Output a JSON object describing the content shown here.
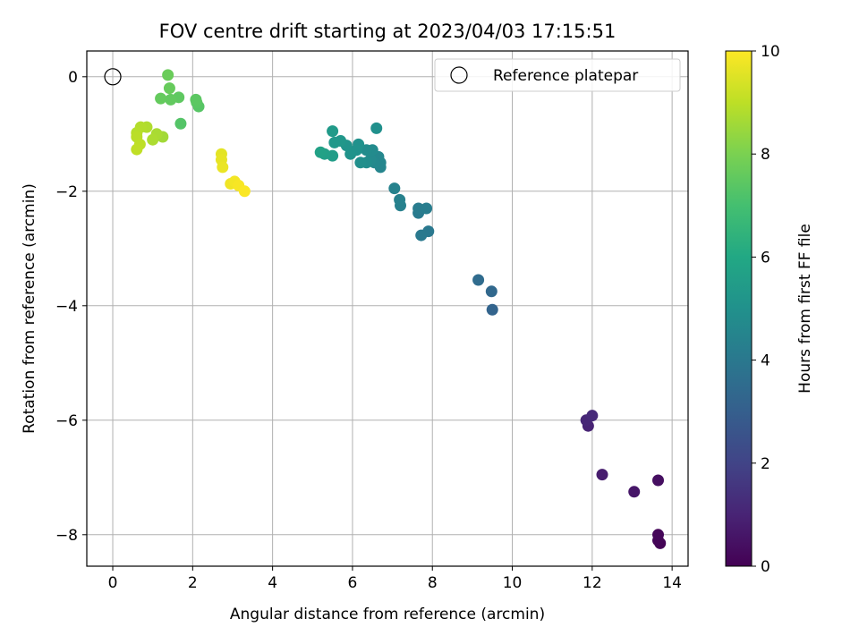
{
  "chart_data": {
    "type": "scatter",
    "title": "FOV centre drift starting at 2023/04/03 17:15:51",
    "xlabel": "Angular distance from reference (arcmin)",
    "ylabel": "Rotation from reference (arcmin)",
    "xlim": [
      -0.65,
      14.4
    ],
    "ylim": [
      -8.55,
      0.45
    ],
    "xticks": [
      0,
      2,
      4,
      6,
      8,
      10,
      12,
      14
    ],
    "yticks": [
      0,
      -2,
      -4,
      -6,
      -8
    ],
    "grid": true,
    "legend": {
      "placement": "top-right",
      "entries": [
        "Reference platepar"
      ]
    },
    "colorbar": {
      "label": "Hours from first FF file",
      "min": 0,
      "max": 10,
      "ticks": [
        0,
        2,
        4,
        6,
        8,
        10
      ],
      "colormap": "viridis"
    },
    "reference_point": {
      "x": 0,
      "y": 0,
      "label": "Reference platepar"
    },
    "points": [
      {
        "x": 13.7,
        "y": -8.15,
        "c": 0.05
      },
      {
        "x": 13.65,
        "y": -8.1,
        "c": 0.1
      },
      {
        "x": 13.65,
        "y": -8.0,
        "c": 0.15
      },
      {
        "x": 13.65,
        "y": -7.05,
        "c": 0.4
      },
      {
        "x": 13.05,
        "y": -7.25,
        "c": 0.6
      },
      {
        "x": 12.25,
        "y": -6.95,
        "c": 0.8
      },
      {
        "x": 11.9,
        "y": -6.1,
        "c": 1.0
      },
      {
        "x": 11.85,
        "y": -6.0,
        "c": 1.1
      },
      {
        "x": 12.0,
        "y": -5.92,
        "c": 1.2
      },
      {
        "x": 9.5,
        "y": -4.07,
        "c": 3.2
      },
      {
        "x": 9.48,
        "y": -3.75,
        "c": 3.35
      },
      {
        "x": 9.15,
        "y": -3.55,
        "c": 3.5
      },
      {
        "x": 7.9,
        "y": -2.7,
        "c": 4.0
      },
      {
        "x": 7.72,
        "y": -2.77,
        "c": 4.05
      },
      {
        "x": 7.65,
        "y": -2.38,
        "c": 4.1
      },
      {
        "x": 7.65,
        "y": -2.3,
        "c": 4.15
      },
      {
        "x": 7.85,
        "y": -2.3,
        "c": 4.2
      },
      {
        "x": 7.2,
        "y": -2.25,
        "c": 4.3
      },
      {
        "x": 7.18,
        "y": -2.15,
        "c": 4.35
      },
      {
        "x": 7.05,
        "y": -1.95,
        "c": 4.4
      },
      {
        "x": 6.7,
        "y": -1.58,
        "c": 4.5
      },
      {
        "x": 6.7,
        "y": -1.5,
        "c": 4.55
      },
      {
        "x": 6.65,
        "y": -1.4,
        "c": 4.6
      },
      {
        "x": 6.55,
        "y": -1.5,
        "c": 4.65
      },
      {
        "x": 6.45,
        "y": -1.45,
        "c": 4.7
      },
      {
        "x": 6.5,
        "y": -1.28,
        "c": 4.75
      },
      {
        "x": 6.35,
        "y": -1.28,
        "c": 4.8
      },
      {
        "x": 6.35,
        "y": -1.5,
        "c": 4.85
      },
      {
        "x": 6.2,
        "y": -1.5,
        "c": 4.9
      },
      {
        "x": 6.6,
        "y": -0.9,
        "c": 4.95
      },
      {
        "x": 6.15,
        "y": -1.18,
        "c": 5.0
      },
      {
        "x": 6.1,
        "y": -1.28,
        "c": 5.05
      },
      {
        "x": 5.95,
        "y": -1.35,
        "c": 5.1
      },
      {
        "x": 5.85,
        "y": -1.2,
        "c": 5.15
      },
      {
        "x": 5.7,
        "y": -1.12,
        "c": 5.25
      },
      {
        "x": 5.55,
        "y": -1.15,
        "c": 5.3
      },
      {
        "x": 5.5,
        "y": -0.95,
        "c": 5.4
      },
      {
        "x": 5.5,
        "y": -1.38,
        "c": 5.5
      },
      {
        "x": 5.3,
        "y": -1.35,
        "c": 5.6
      },
      {
        "x": 5.2,
        "y": -1.32,
        "c": 5.7
      },
      {
        "x": 1.7,
        "y": -0.82,
        "c": 7.3
      },
      {
        "x": 2.15,
        "y": -0.52,
        "c": 7.35
      },
      {
        "x": 2.1,
        "y": -0.45,
        "c": 7.4
      },
      {
        "x": 2.08,
        "y": -0.4,
        "c": 7.45
      },
      {
        "x": 1.65,
        "y": -0.36,
        "c": 7.5
      },
      {
        "x": 1.45,
        "y": -0.4,
        "c": 7.55
      },
      {
        "x": 1.2,
        "y": -0.38,
        "c": 7.6
      },
      {
        "x": 1.42,
        "y": -0.2,
        "c": 7.65
      },
      {
        "x": 1.38,
        "y": 0.03,
        "c": 7.7
      },
      {
        "x": 1.25,
        "y": -1.05,
        "c": 8.6
      },
      {
        "x": 1.1,
        "y": -1.0,
        "c": 8.7
      },
      {
        "x": 1.0,
        "y": -1.1,
        "c": 8.75
      },
      {
        "x": 0.85,
        "y": -0.88,
        "c": 8.8
      },
      {
        "x": 0.7,
        "y": -0.88,
        "c": 8.85
      },
      {
        "x": 0.6,
        "y": -0.98,
        "c": 8.9
      },
      {
        "x": 0.6,
        "y": -1.05,
        "c": 8.95
      },
      {
        "x": 0.68,
        "y": -1.18,
        "c": 9.0
      },
      {
        "x": 0.6,
        "y": -1.27,
        "c": 9.05
      },
      {
        "x": 2.72,
        "y": -1.35,
        "c": 9.6
      },
      {
        "x": 2.72,
        "y": -1.45,
        "c": 9.65
      },
      {
        "x": 2.75,
        "y": -1.58,
        "c": 9.7
      },
      {
        "x": 2.95,
        "y": -1.87,
        "c": 9.8
      },
      {
        "x": 3.05,
        "y": -1.83,
        "c": 9.85
      },
      {
        "x": 3.15,
        "y": -1.9,
        "c": 9.9
      },
      {
        "x": 3.3,
        "y": -2.0,
        "c": 9.95
      }
    ]
  }
}
